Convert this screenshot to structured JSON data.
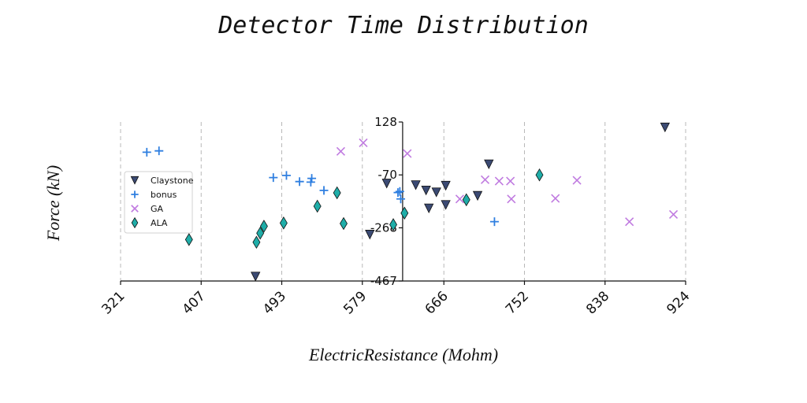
{
  "chart_data": {
    "type": "scatter",
    "title": "Detector Time Distribution",
    "xlabel": "ElectricResistance (Mohm)",
    "ylabel": "Force (kN)",
    "xlim": [
      321,
      924
    ],
    "ylim": [
      -467,
      128
    ],
    "xticks": [
      321,
      407,
      493,
      579,
      666,
      752,
      838,
      924
    ],
    "yticks": [
      128,
      -70,
      -268,
      -467
    ],
    "grid": {
      "x": true,
      "y": false
    },
    "y_axis_position_x": 622,
    "legend": "center-left",
    "series": [
      {
        "name": "Claystone",
        "marker": "triangle-down",
        "color": "#3b4a73",
        "points": [
          [
            902,
            108
          ],
          [
            714,
            -30
          ],
          [
            605,
            -102
          ],
          [
            636,
            -108
          ],
          [
            647,
            -128
          ],
          [
            668,
            -110
          ],
          [
            658,
            -135
          ],
          [
            702,
            -148
          ],
          [
            668,
            -182
          ],
          [
            650,
            -195
          ],
          [
            587,
            -293
          ],
          [
            465,
            -450
          ]
        ]
      },
      {
        "name": "bonus",
        "marker": "plus",
        "color": "#2f7fe0",
        "points": [
          [
            349,
            15
          ],
          [
            362,
            20
          ],
          [
            484,
            -80
          ],
          [
            498,
            -72
          ],
          [
            512,
            -95
          ],
          [
            524,
            -97
          ],
          [
            525,
            -83
          ],
          [
            538,
            -128
          ],
          [
            617,
            -136
          ],
          [
            619,
            -132
          ],
          [
            620,
            -160
          ],
          [
            720,
            -245
          ]
        ]
      },
      {
        "name": "GA",
        "marker": "x",
        "color": "#c07be0",
        "points": [
          [
            580,
            50
          ],
          [
            556,
            18
          ],
          [
            627,
            10
          ],
          [
            710,
            -88
          ],
          [
            725,
            -93
          ],
          [
            737,
            -93
          ],
          [
            683,
            -160
          ],
          [
            738,
            -160
          ],
          [
            785,
            -158
          ],
          [
            808,
            -90
          ],
          [
            864,
            -245
          ],
          [
            911,
            -218
          ]
        ]
      },
      {
        "name": "ALA",
        "marker": "diamond",
        "color": "#1fada8",
        "points": [
          [
            394,
            -312
          ],
          [
            470,
            -288
          ],
          [
            474,
            -262
          ],
          [
            495,
            -250
          ],
          [
            531,
            -187
          ],
          [
            552,
            -137
          ],
          [
            559,
            -252
          ],
          [
            612,
            -256
          ],
          [
            624,
            -213
          ],
          [
            690,
            -163
          ],
          [
            768,
            -70
          ],
          [
            466,
            -322
          ]
        ]
      }
    ]
  }
}
